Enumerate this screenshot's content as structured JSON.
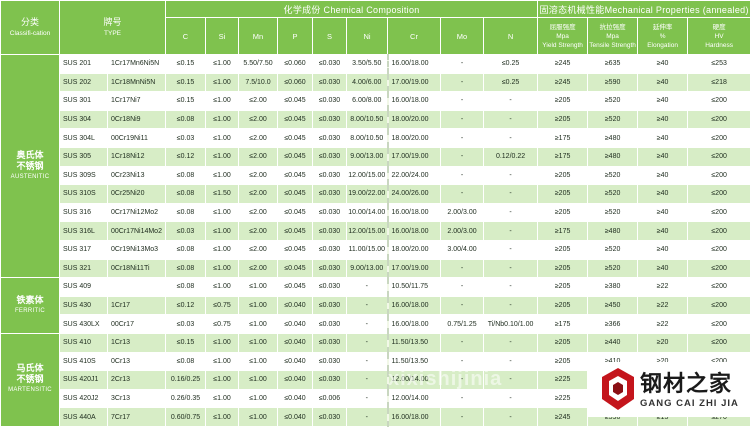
{
  "header": {
    "classification_cn": "分类",
    "classification_en": "Classifi-cation",
    "type_cn": "牌号",
    "type_en": "TYPE",
    "chemical_title": "化学成份 Chemical Composition",
    "mechanical_title": "固溶态机械性能Mechanical Properties (annealed)",
    "elements": [
      "C",
      "Si",
      "Mn",
      "P",
      "S",
      "Ni",
      "Cr",
      "Mo",
      "N"
    ],
    "mech": [
      {
        "cn": "屈服强度",
        "unit": "Mpa",
        "en": "Yield Strength"
      },
      {
        "cn": "抗拉强度",
        "unit": "Mpa",
        "en": "Tensile Strength"
      },
      {
        "cn": "延伸率",
        "unit": "%",
        "en": "Elongation"
      },
      {
        "cn": "硬度",
        "unit": "HV",
        "en": "Hardness"
      }
    ]
  },
  "groups": [
    {
      "cn": "奥氏体\n不锈钢",
      "en": "AUSTENITIC",
      "rows": [
        [
          "SUS 201",
          "1Cr17Mn6Ni5N",
          "≤0.15",
          "≤1.00",
          "5.50/7.50",
          "≤0.060",
          "≤0.030",
          "3.50/5.50",
          "16.00/18.00",
          "-",
          "≤0.25",
          "≥245",
          "≥635",
          "≥40",
          "≤253"
        ],
        [
          "SUS 202",
          "1Cr18MnNi5N",
          "≤0.15",
          "≤1.00",
          "7.5/10.0",
          "≤0.060",
          "≤0.030",
          "4.00/6.00",
          "17.00/19.00",
          "-",
          "≤0.25",
          "≥245",
          "≥590",
          "≥40",
          "≤218"
        ],
        [
          "SUS 301",
          "1Cr17Ni7",
          "≤0.15",
          "≤1.00",
          "≤2.00",
          "≤0.045",
          "≤0.030",
          "6.00/8.00",
          "16.00/18.00",
          "-",
          "-",
          "≥205",
          "≥520",
          "≥40",
          "≤200"
        ],
        [
          "SUS 304",
          "0Cr18Ni9",
          "≤0.08",
          "≤1.00",
          "≤2.00",
          "≤0.045",
          "≤0.030",
          "8.00/10.50",
          "18.00/20.00",
          "-",
          "-",
          "≥205",
          "≥520",
          "≥40",
          "≤200"
        ],
        [
          "SUS 304L",
          "00Cr19Ni11",
          "≤0.03",
          "≤1.00",
          "≤2.00",
          "≤0.045",
          "≤0.030",
          "8.00/10.50",
          "18.00/20.00",
          "-",
          "-",
          "≥175",
          "≥480",
          "≥40",
          "≤200"
        ],
        [
          "SUS 305",
          "1Cr18Ni12",
          "≤0.12",
          "≤1.00",
          "≤2.00",
          "≤0.045",
          "≤0.030",
          "9.00/13.00",
          "17.00/19.00",
          "-",
          "0.12/0.22",
          "≥175",
          "≥480",
          "≥40",
          "≤200"
        ],
        [
          "SUS 309S",
          "0Cr23Ni13",
          "≤0.08",
          "≤1.00",
          "≤2.00",
          "≤0.045",
          "≤0.030",
          "12.00/15.00",
          "22.00/24.00",
          "-",
          "-",
          "≥205",
          "≥520",
          "≥40",
          "≤200"
        ],
        [
          "SUS 310S",
          "0Cr25Ni20",
          "≤0.08",
          "≤1.50",
          "≤2.00",
          "≤0.045",
          "≤0.030",
          "19.00/22.00",
          "24.00/26.00",
          "-",
          "-",
          "≥205",
          "≥520",
          "≥40",
          "≤200"
        ],
        [
          "SUS 316",
          "0Cr17Ni12Mo2",
          "≤0.08",
          "≤1.00",
          "≤2.00",
          "≤0.045",
          "≤0.030",
          "10.00/14.00",
          "16.00/18.00",
          "2.00/3.00",
          "-",
          "≥205",
          "≥520",
          "≥40",
          "≤200"
        ],
        [
          "SUS 316L",
          "00Cr17Ni14Mo2",
          "≤0.03",
          "≤1.00",
          "≤2.00",
          "≤0.045",
          "≤0.030",
          "12.00/15.00",
          "16.00/18.00",
          "2.00/3.00",
          "-",
          "≥175",
          "≥480",
          "≥40",
          "≤200"
        ],
        [
          "SUS 317",
          "0Cr19Ni13Mo3",
          "≤0.08",
          "≤1.00",
          "≤2.00",
          "≤0.045",
          "≤0.030",
          "11.00/15.00",
          "18.00/20.00",
          "3.00/4.00",
          "-",
          "≥205",
          "≥520",
          "≥40",
          "≤200"
        ],
        [
          "SUS 321",
          "0Cr18Ni11Ti",
          "≤0.08",
          "≤1.00",
          "≤2.00",
          "≤0.045",
          "≤0.030",
          "9.00/13.00",
          "17.00/19.00",
          "-",
          "-",
          "≥205",
          "≥520",
          "≥40",
          "≤200"
        ]
      ]
    },
    {
      "cn": "铁素体",
      "en": "FERRITIC",
      "rows": [
        [
          "SUS 409",
          "",
          "≤0.08",
          "≤1.00",
          "≤1.00",
          "≤0.045",
          "≤0.030",
          "-",
          "10.50/11.75",
          "-",
          "-",
          "≥205",
          "≥380",
          "≥22",
          "≤200"
        ],
        [
          "SUS 430",
          "1Cr17",
          "≤0.12",
          "≤0.75",
          "≤1.00",
          "≤0.040",
          "≤0.030",
          "-",
          "16.00/18.00",
          "-",
          "-",
          "≥205",
          "≥450",
          "≥22",
          "≤200"
        ],
        [
          "SUS 430LX",
          "00Cr17",
          "≤0.03",
          "≤0.75",
          "≤1.00",
          "≤0.040",
          "≤0.030",
          "-",
          "16.00/18.00",
          "0.75/1.25",
          "Ti/Nb0.10/1.00",
          "≥175",
          "≥366",
          "≥22",
          "≤200"
        ]
      ]
    },
    {
      "cn": "马氏体\n不锈钢",
      "en": "MARTENSITIC",
      "rows": [
        [
          "SUS 410",
          "1Cr13",
          "≤0.15",
          "≤1.00",
          "≤1.00",
          "≤0.040",
          "≤0.030",
          "-",
          "11.50/13.50",
          "-",
          "-",
          "≥205",
          "≥440",
          "≥20",
          "≤200"
        ],
        [
          "SUS 410S",
          "0Cr13",
          "≤0.08",
          "≤1.00",
          "≤1.00",
          "≤0.040",
          "≤0.030",
          "-",
          "11.50/13.50",
          "-",
          "-",
          "≥205",
          "≥410",
          "≥20",
          "≤200"
        ],
        [
          "SUS 420J1",
          "2Cr13",
          "0.16/0.25",
          "≤1.00",
          "≤1.00",
          "≤0.040",
          "≤0.030",
          "-",
          "12.00/14.00",
          "-",
          "-",
          "≥225",
          "≥520",
          "≥18",
          "≤234"
        ],
        [
          "SUS 420J2",
          "3Cr13",
          "0.26/0.35",
          "≤1.00",
          "≤1.00",
          "≤0.040",
          "≤0.006",
          "-",
          "12.00/14.00",
          "-",
          "-",
          "≥225",
          "≥540",
          "≥18",
          "≤247"
        ],
        [
          "SUS 440A",
          "7Cr17",
          "0.60/0.75",
          "≤1.00",
          "≤1.00",
          "≤0.040",
          "≤0.030",
          "-",
          "16.00/18.00",
          "-",
          "-",
          "≥245",
          "≥590",
          "≥15",
          "≤270"
        ]
      ]
    }
  ],
  "watermark": "xixishijinia",
  "logo": {
    "cn": "钢材之家",
    "en": "GANG CAI ZHI JIA",
    "accent": "#c4151c"
  }
}
